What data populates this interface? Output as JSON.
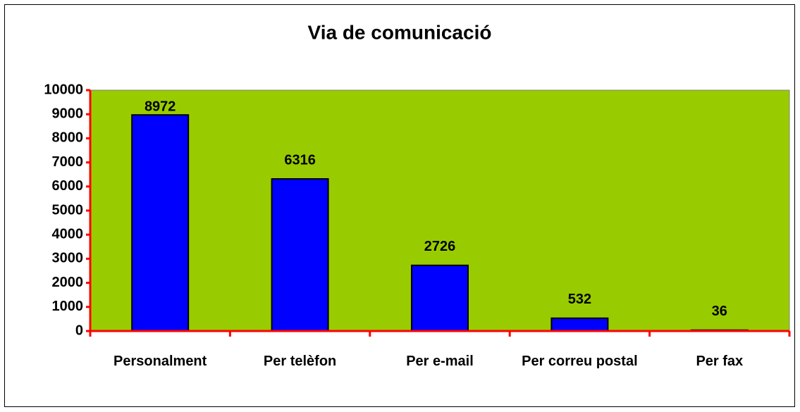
{
  "chart_data": {
    "type": "bar",
    "title": "Via de comunicació",
    "categories": [
      "Personalment",
      "Per telèfon",
      "Per e-mail",
      "Per correu postal",
      "Per fax"
    ],
    "values": [
      8972,
      6316,
      2726,
      532,
      36
    ],
    "color": "#0000ff",
    "plot_background": "#99cc00",
    "axis_color": "#ff0000",
    "ylim": [
      0,
      10000
    ],
    "yticks": [
      0,
      1000,
      2000,
      3000,
      4000,
      5000,
      6000,
      7000,
      8000,
      9000,
      10000
    ],
    "grid": false
  }
}
